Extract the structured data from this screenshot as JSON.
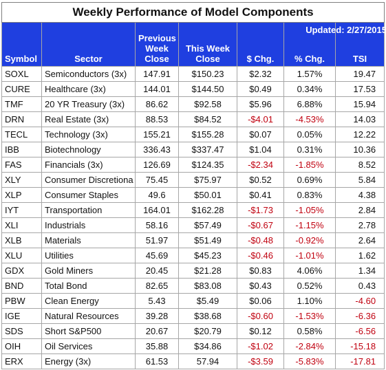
{
  "title": "Weekly Performance of Model Components",
  "updated": "Updated:  2/27/2015",
  "headers": {
    "symbol": "Symbol",
    "sector": "Sector",
    "previous_line1": "Previous",
    "previous_line2": "Week",
    "previous_line3": "Close",
    "this_line1": "This Week",
    "this_line2": "Close",
    "dollar_change": "$ Chg.",
    "pct_change": "% Chg.",
    "tsi": "TSI"
  },
  "colors": {
    "header_bg": "#1f3fe0",
    "negative": "#c0000f"
  },
  "rows": [
    {
      "symbol": "SOXL",
      "sector": "Semiconductors  (3x)",
      "prev": "147.91",
      "curr": "$150.23",
      "chg": "$2.32",
      "pct": "1.57%",
      "tsi": "19.47",
      "neg_chg": false,
      "neg_tsi": false
    },
    {
      "symbol": "CURE",
      "sector": "Healthcare  (3x)",
      "prev": "144.01",
      "curr": "$144.50",
      "chg": "$0.49",
      "pct": "0.34%",
      "tsi": "17.53",
      "neg_chg": false,
      "neg_tsi": false
    },
    {
      "symbol": "TMF",
      "sector": "20 YR Treasury  (3x)",
      "prev": "86.62",
      "curr": "$92.58",
      "chg": "$5.96",
      "pct": "6.88%",
      "tsi": "15.94",
      "neg_chg": false,
      "neg_tsi": false
    },
    {
      "symbol": "DRN",
      "sector": "Real Estate  (3x)",
      "prev": "88.53",
      "curr": "$84.52",
      "chg": "-$4.01",
      "pct": "-4.53%",
      "tsi": "14.03",
      "neg_chg": true,
      "neg_tsi": false
    },
    {
      "symbol": "TECL",
      "sector": "Technology  (3x)",
      "prev": "155.21",
      "curr": "$155.28",
      "chg": "$0.07",
      "pct": "0.05%",
      "tsi": "12.22",
      "neg_chg": false,
      "neg_tsi": false
    },
    {
      "symbol": "IBB",
      "sector": "Biotechnology",
      "prev": "336.43",
      "curr": "$337.47",
      "chg": "$1.04",
      "pct": "0.31%",
      "tsi": "10.36",
      "neg_chg": false,
      "neg_tsi": false
    },
    {
      "symbol": "FAS",
      "sector": "Financials  (3x)",
      "prev": "126.69",
      "curr": "$124.35",
      "chg": "-$2.34",
      "pct": "-1.85%",
      "tsi": "8.52",
      "neg_chg": true,
      "neg_tsi": false
    },
    {
      "symbol": "XLY",
      "sector": "Consumer Discretiona",
      "prev": "75.45",
      "curr": "$75.97",
      "chg": "$0.52",
      "pct": "0.69%",
      "tsi": "5.84",
      "neg_chg": false,
      "neg_tsi": false
    },
    {
      "symbol": "XLP",
      "sector": "Consumer Staples",
      "prev": "49.6",
      "curr": "$50.01",
      "chg": "$0.41",
      "pct": "0.83%",
      "tsi": "4.38",
      "neg_chg": false,
      "neg_tsi": false
    },
    {
      "symbol": "IYT",
      "sector": "Transportation",
      "prev": "164.01",
      "curr": "$162.28",
      "chg": "-$1.73",
      "pct": "-1.05%",
      "tsi": "2.84",
      "neg_chg": true,
      "neg_tsi": false
    },
    {
      "symbol": "XLI",
      "sector": "Industrials",
      "prev": "58.16",
      "curr": "$57.49",
      "chg": "-$0.67",
      "pct": "-1.15%",
      "tsi": "2.78",
      "neg_chg": true,
      "neg_tsi": false
    },
    {
      "symbol": "XLB",
      "sector": "Materials",
      "prev": "51.97",
      "curr": "$51.49",
      "chg": "-$0.48",
      "pct": "-0.92%",
      "tsi": "2.64",
      "neg_chg": true,
      "neg_tsi": false
    },
    {
      "symbol": "XLU",
      "sector": "Utilities",
      "prev": "45.69",
      "curr": "$45.23",
      "chg": "-$0.46",
      "pct": "-1.01%",
      "tsi": "1.62",
      "neg_chg": true,
      "neg_tsi": false
    },
    {
      "symbol": "GDX",
      "sector": "Gold Miners",
      "prev": "20.45",
      "curr": "$21.28",
      "chg": "$0.83",
      "pct": "4.06%",
      "tsi": "1.34",
      "neg_chg": false,
      "neg_tsi": false
    },
    {
      "symbol": "BND",
      "sector": "Total Bond",
      "prev": "82.65",
      "curr": "$83.08",
      "chg": "$0.43",
      "pct": "0.52%",
      "tsi": "0.43",
      "neg_chg": false,
      "neg_tsi": false
    },
    {
      "symbol": "PBW",
      "sector": "Clean Energy",
      "prev": "5.43",
      "curr": "$5.49",
      "chg": "$0.06",
      "pct": "1.10%",
      "tsi": "-4.60",
      "neg_chg": false,
      "neg_tsi": true
    },
    {
      "symbol": "IGE",
      "sector": "Natural Resources",
      "prev": "39.28",
      "curr": "$38.68",
      "chg": "-$0.60",
      "pct": "-1.53%",
      "tsi": "-6.36",
      "neg_chg": true,
      "neg_tsi": true
    },
    {
      "symbol": "SDS",
      "sector": "Short S&P500",
      "prev": "20.67",
      "curr": "$20.79",
      "chg": "$0.12",
      "pct": "0.58%",
      "tsi": "-6.56",
      "neg_chg": false,
      "neg_tsi": true
    },
    {
      "symbol": "OIH",
      "sector": "Oil Services",
      "prev": "35.88",
      "curr": "$34.86",
      "chg": "-$1.02",
      "pct": "-2.84%",
      "tsi": "-15.18",
      "neg_chg": true,
      "neg_tsi": true
    },
    {
      "symbol": "ERX",
      "sector": "Energy  (3x)",
      "prev": "61.53",
      "curr": "57.94",
      "chg": "-$3.59",
      "pct": "-5.83%",
      "tsi": "-17.81",
      "neg_chg": true,
      "neg_tsi": true
    }
  ]
}
